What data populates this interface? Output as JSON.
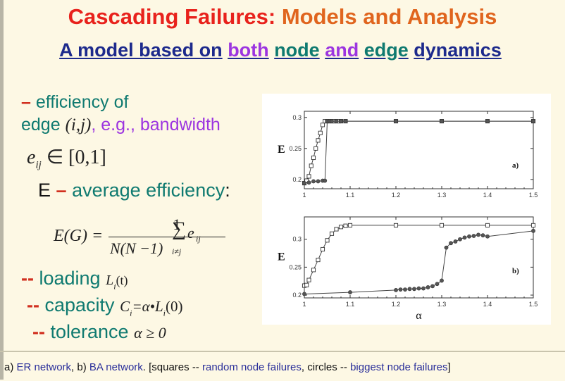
{
  "title": {
    "part1": "Cascading Failures:",
    "part2": "Models and Analysis"
  },
  "subtitle": {
    "w1": "A model based on",
    "w2": "both",
    "w3": "node",
    "w4": "and",
    "w5": "edge",
    "w6": "dynamics"
  },
  "bullets": {
    "efficiency_dash": "–",
    "efficiency_line1": "efficiency of",
    "efficiency_line2a": "edge",
    "efficiency_edge_var": "(i,j)",
    "efficiency_line2b": ", e.g., bandwidth",
    "eij_formula": "e",
    "eij_sub": "ij",
    "eij_range": "∈ [0,1]",
    "E_label": "E",
    "E_dash": "–",
    "E_text": "average efficiency",
    "E_colon": ":",
    "formula_lhs": "E(G) =",
    "formula_num": "1",
    "formula_den": "N(N −1)",
    "formula_sum": "∑",
    "formula_sum_sub": "i≠j",
    "formula_e": "e",
    "formula_e_sub": "ij",
    "loading_dash": "--",
    "loading_text": "loading",
    "loading_var": "L",
    "loading_var_sub": "i",
    "loading_var_arg": "(t)",
    "capacity_dash": "--",
    "capacity_text": "capacity",
    "capacity_formula": "C",
    "capacity_formula_sub": "i",
    "capacity_formula_rest": "=α•L",
    "capacity_formula_sub2": "i",
    "capacity_formula_end": "(0)",
    "tolerance_dash": "--",
    "tolerance_text": "tolerance",
    "tolerance_formula": "α ≥ 0"
  },
  "footer": {
    "a_label": "a)",
    "a_text": "ER network",
    "b_label": ", b)",
    "b_text": "BA network",
    "bracket_open": ". [squares --",
    "squares_text": "random node failures",
    "circles_sep": ", circles --",
    "circles_text": "biggest node failures",
    "bracket_close": "]"
  },
  "chart_data": [
    {
      "type": "line",
      "panel_label": "a)",
      "ylabel": "E",
      "xlabel": "",
      "xlim": [
        1.0,
        1.5
      ],
      "ylim": [
        0.185,
        0.31
      ],
      "x_ticks": [
        "1",
        "1.1",
        "1.2",
        "1.3",
        "1.4",
        "1.5"
      ],
      "y_ticks": [
        "0.2",
        "0.25",
        "0.3"
      ],
      "series": [
        {
          "marker": "square",
          "x": [
            1.0,
            1.005,
            1.01,
            1.015,
            1.02,
            1.025,
            1.03,
            1.035,
            1.04,
            1.045,
            1.05,
            1.055,
            1.06,
            1.065,
            1.07,
            1.075,
            1.08,
            1.09,
            1.2,
            1.3,
            1.4,
            1.5
          ],
          "y": [
            0.194,
            0.198,
            0.205,
            0.222,
            0.235,
            0.25,
            0.263,
            0.275,
            0.288,
            0.294,
            0.294,
            0.294,
            0.294,
            0.294,
            0.294,
            0.294,
            0.294,
            0.294,
            0.294,
            0.294,
            0.294,
            0.294
          ]
        },
        {
          "marker": "circle",
          "x": [
            1.0,
            1.01,
            1.02,
            1.03,
            1.04,
            1.045,
            1.05,
            1.055,
            1.06,
            1.07,
            1.08,
            1.09,
            1.2,
            1.3,
            1.4,
            1.5
          ],
          "y": [
            0.194,
            0.195,
            0.197,
            0.197,
            0.198,
            0.198,
            0.294,
            0.294,
            0.294,
            0.294,
            0.294,
            0.294,
            0.294,
            0.294,
            0.294,
            0.294
          ]
        }
      ]
    },
    {
      "type": "line",
      "panel_label": "b)",
      "ylabel": "E",
      "xlabel": "α",
      "xlim": [
        1.0,
        1.5
      ],
      "ylim": [
        0.195,
        0.34
      ],
      "x_ticks": [
        "1",
        "1.1",
        "1.2",
        "1.3",
        "1.4",
        "1.5"
      ],
      "y_ticks": [
        "0.2",
        "0.25",
        "0.3"
      ],
      "series": [
        {
          "marker": "square",
          "x": [
            1.0,
            1.005,
            1.01,
            1.02,
            1.03,
            1.04,
            1.05,
            1.06,
            1.07,
            1.08,
            1.09,
            1.1,
            1.2,
            1.3,
            1.4,
            1.5
          ],
          "y": [
            0.217,
            0.218,
            0.227,
            0.245,
            0.263,
            0.282,
            0.298,
            0.31,
            0.318,
            0.322,
            0.324,
            0.325,
            0.325,
            0.325,
            0.325,
            0.325
          ]
        },
        {
          "marker": "circle",
          "x": [
            1.0,
            1.1,
            1.2,
            1.21,
            1.22,
            1.23,
            1.24,
            1.25,
            1.26,
            1.27,
            1.28,
            1.29,
            1.3,
            1.31,
            1.32,
            1.33,
            1.34,
            1.35,
            1.36,
            1.37,
            1.38,
            1.39,
            1.4,
            1.5
          ],
          "y": [
            0.202,
            0.205,
            0.209,
            0.21,
            0.21,
            0.211,
            0.211,
            0.212,
            0.212,
            0.214,
            0.216,
            0.22,
            0.226,
            0.285,
            0.293,
            0.296,
            0.3,
            0.303,
            0.305,
            0.306,
            0.308,
            0.307,
            0.305,
            0.315
          ]
        }
      ]
    }
  ],
  "colors": {
    "title_red": "#e8221c",
    "title_orange": "#e0651e",
    "navy": "#1d2a8c",
    "purple": "#9c35e0",
    "teal": "#0f7a70",
    "background": "#fdf8e4"
  }
}
